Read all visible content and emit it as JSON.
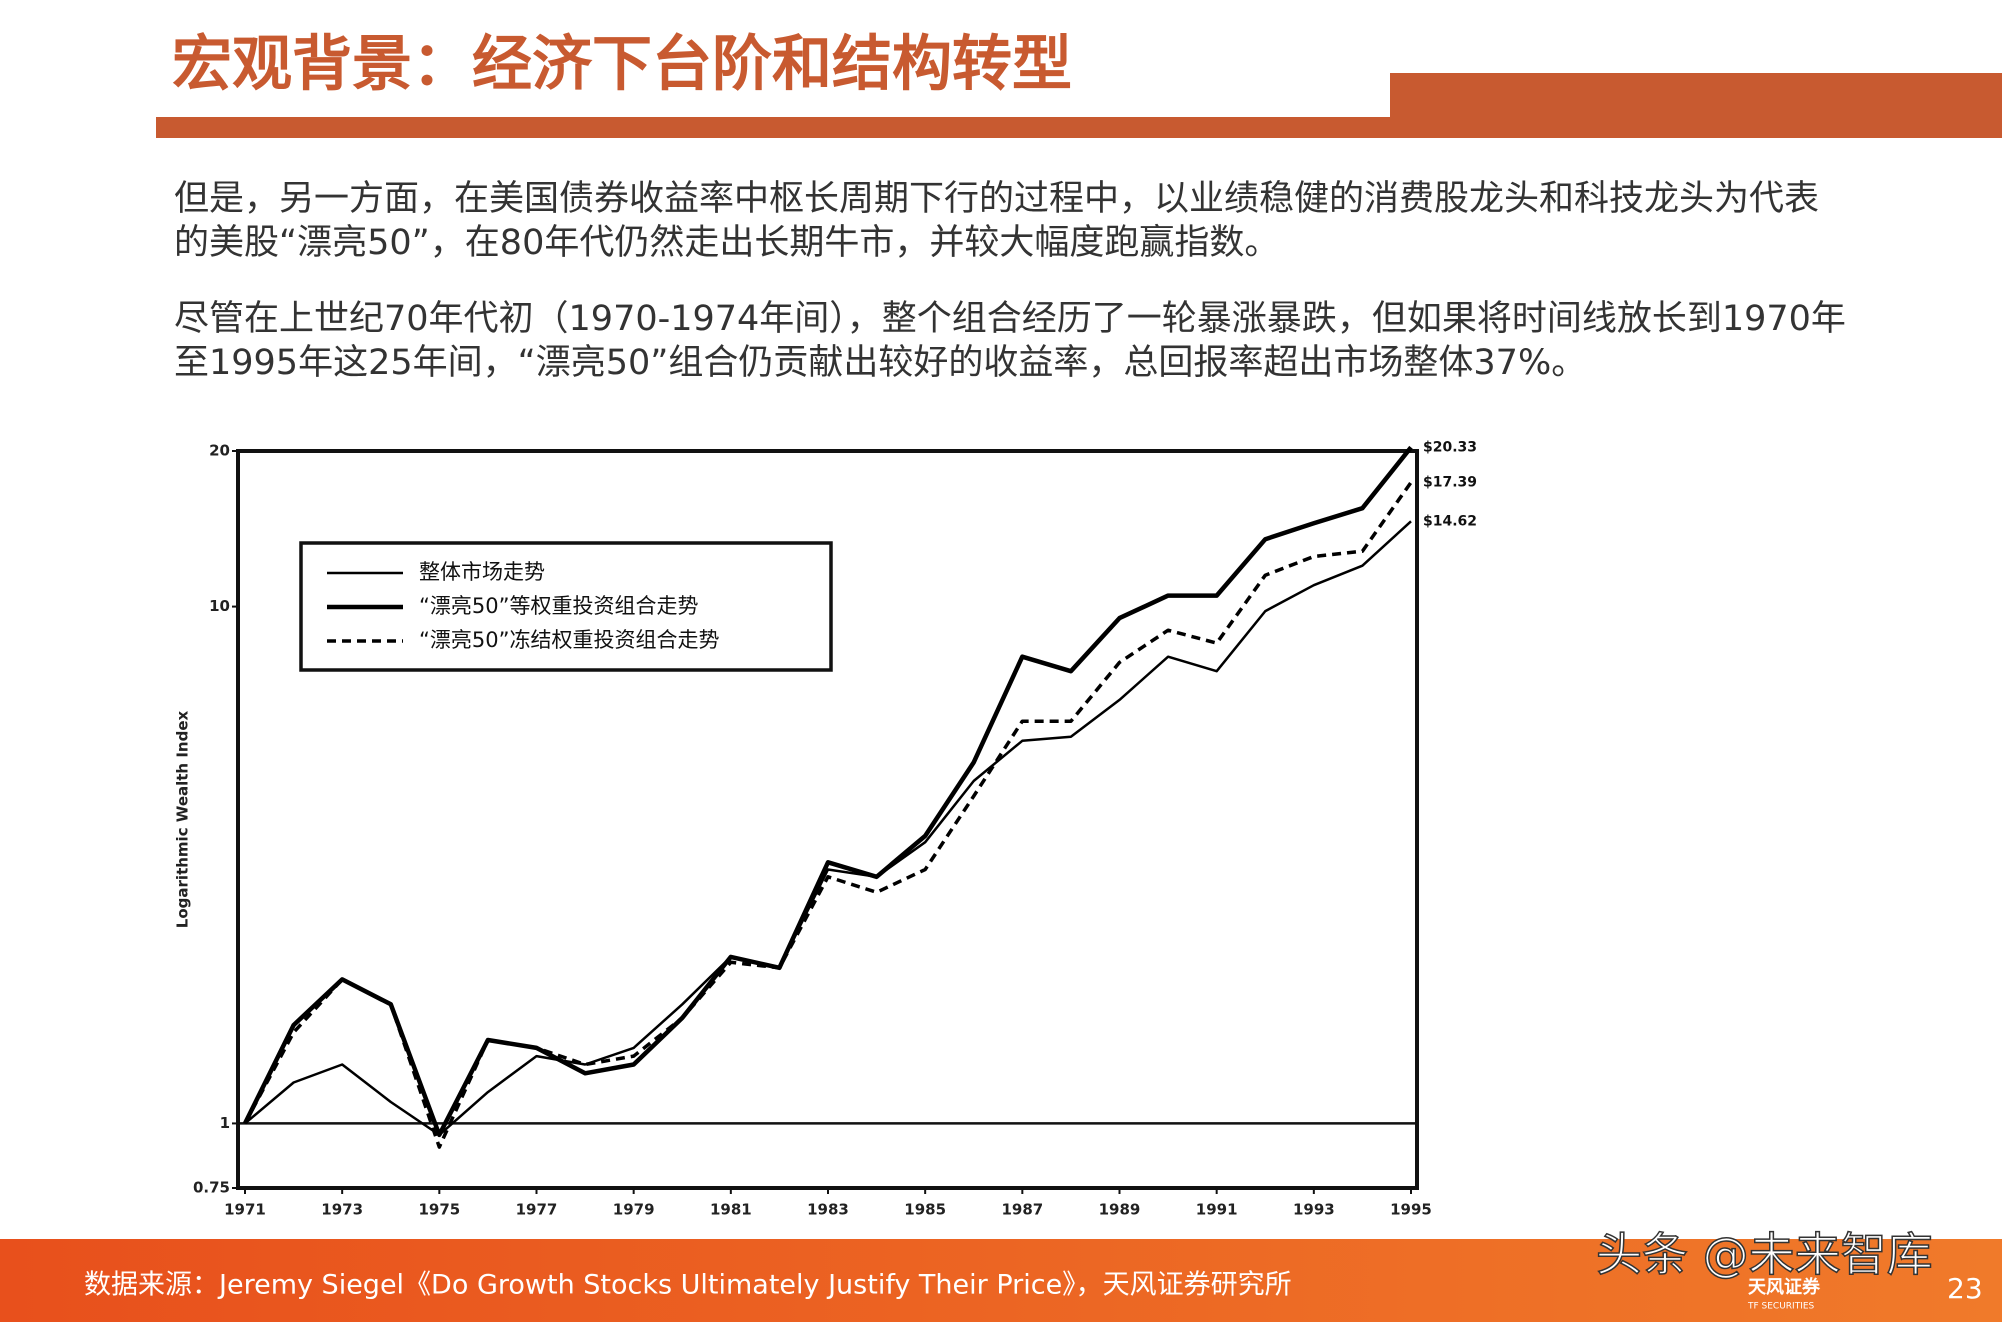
{
  "header": {
    "title": "宏观背景：经济下台阶和结构转型"
  },
  "paragraphs": [
    [
      "但是，另一方面，在美国债券收益率中枢长周期下行的过程中，以业绩稳健的消费股龙头和科技龙头为代表",
      "的美股“漂亮50”，在80年代仍然走出长期牛市，并较大幅度跑赢指数。"
    ],
    [
      "尽管在上世纪70年代初（1970-1974年间），整个组合经历了一轮暴涨暴跌，但如果将时间线放长到1970年",
      "至1995年这25年间，“漂亮50”组合仍贡献出较好的收益率，总回报率超出市场整体37%。"
    ]
  ],
  "chart_data": {
    "type": "line",
    "y_label": "Logarithmic Wealth Index",
    "log_scale": true,
    "x": [
      1971,
      1972,
      1973,
      1974,
      1975,
      1976,
      1977,
      1978,
      1979,
      1980,
      1981,
      1982,
      1983,
      1984,
      1985,
      1986,
      1987,
      1988,
      1989,
      1990,
      1991,
      1992,
      1993,
      1994,
      1995
    ],
    "xlim": [
      1971,
      1995
    ],
    "xticks": [
      1971,
      1973,
      1975,
      1977,
      1979,
      1981,
      1983,
      1985,
      1987,
      1989,
      1991,
      1993,
      1995
    ],
    "ylim": [
      0.75,
      20
    ],
    "yticks": [
      0.75,
      1,
      10,
      20
    ],
    "reference_line": 1,
    "legend": "upper left",
    "series": [
      {
        "name": "整体市场走势",
        "color": "#000000",
        "line_style": "thin",
        "values": [
          1.0,
          1.2,
          1.3,
          1.1,
          0.95,
          1.15,
          1.35,
          1.3,
          1.4,
          1.7,
          2.1,
          2.0,
          3.1,
          3.0,
          3.5,
          4.6,
          5.5,
          5.6,
          6.6,
          8.0,
          7.5,
          9.8,
          11.0,
          12.0,
          14.62
        ],
        "value_labels": [
          null,
          null,
          null,
          null,
          null,
          null,
          null,
          null,
          null,
          null,
          null,
          null,
          null,
          null,
          null,
          null,
          null,
          null,
          null,
          null,
          null,
          null,
          null,
          null,
          "$14.62"
        ]
      },
      {
        "name": "“漂亮50”等权重投资组合走势",
        "color": "#000000",
        "line_style": "thick",
        "values": [
          1.0,
          1.55,
          1.9,
          1.7,
          0.95,
          1.45,
          1.4,
          1.25,
          1.3,
          1.6,
          2.1,
          2.0,
          3.2,
          3.0,
          3.6,
          5.0,
          8.0,
          7.5,
          9.5,
          10.5,
          10.5,
          13.5,
          14.5,
          15.5,
          20.33
        ],
        "value_labels": [
          null,
          null,
          null,
          null,
          null,
          null,
          null,
          null,
          null,
          null,
          null,
          null,
          null,
          null,
          null,
          null,
          null,
          null,
          null,
          null,
          null,
          null,
          null,
          null,
          "$20.33"
        ]
      },
      {
        "name": "“漂亮50”冻结权重投资组合走势",
        "color": "#000000",
        "line_style": "dashed",
        "values": [
          1.0,
          1.5,
          1.9,
          1.7,
          0.9,
          1.45,
          1.4,
          1.3,
          1.35,
          1.6,
          2.05,
          2.0,
          3.0,
          2.8,
          3.1,
          4.3,
          6.0,
          6.0,
          7.8,
          9.0,
          8.5,
          11.5,
          12.5,
          12.8,
          17.39
        ],
        "value_labels": [
          null,
          null,
          null,
          null,
          null,
          null,
          null,
          null,
          null,
          null,
          null,
          null,
          null,
          null,
          null,
          null,
          null,
          null,
          null,
          null,
          null,
          null,
          null,
          null,
          "$17.39"
        ]
      }
    ]
  },
  "footer": {
    "source": "数据来源：Jeremy Siegel《Do Growth Stocks Ultimately Justify Their Price》，天风证券研究所",
    "watermark": "头条 @未来智库",
    "logo": "天风证券",
    "logo_sub": "TF SECURITIES",
    "page": "23"
  }
}
